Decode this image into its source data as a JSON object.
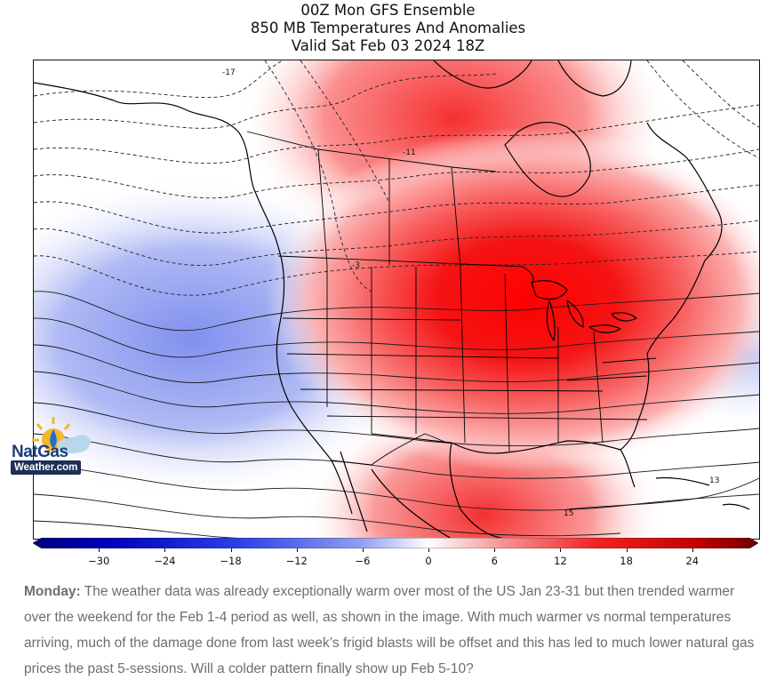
{
  "title": {
    "line1": "00Z Mon GFS Ensemble",
    "line2": "850 MB Temperatures And Anomalies",
    "line3": "Valid Sat Feb 03 2024 18Z"
  },
  "map": {
    "contour_labels": [
      "-17",
      "-11",
      "-3",
      "13",
      "15"
    ],
    "anomaly_colors": {
      "cold": "#3b4fd6",
      "neutral": "#ffffff",
      "warm": "#f01010",
      "extreme_warm": "#8a0000"
    }
  },
  "logo": {
    "line1": "NatGas",
    "line2": "Weather.com"
  },
  "colorbar": {
    "ticks": [
      "−30",
      "−24",
      "−18",
      "−12",
      "−6",
      "0",
      "6",
      "12",
      "18",
      "24"
    ],
    "tick_values": [
      -30,
      -24,
      -18,
      -12,
      -6,
      0,
      6,
      12,
      18,
      24
    ],
    "range": [
      -36,
      30
    ]
  },
  "caption": {
    "label": "Monday:",
    "text": " The weather data was already exceptionally warm over most of the US Jan 23-31 but then trended warmer over the weekend for the Feb 1-4 period as well, as shown in the image. With much warmer vs normal temperatures arriving, much of the damage done from last week’s frigid blasts will be offset and this has led to much lower natural gas prices the past 5-sessions. Will a colder pattern finally show up Feb 5-10?"
  }
}
